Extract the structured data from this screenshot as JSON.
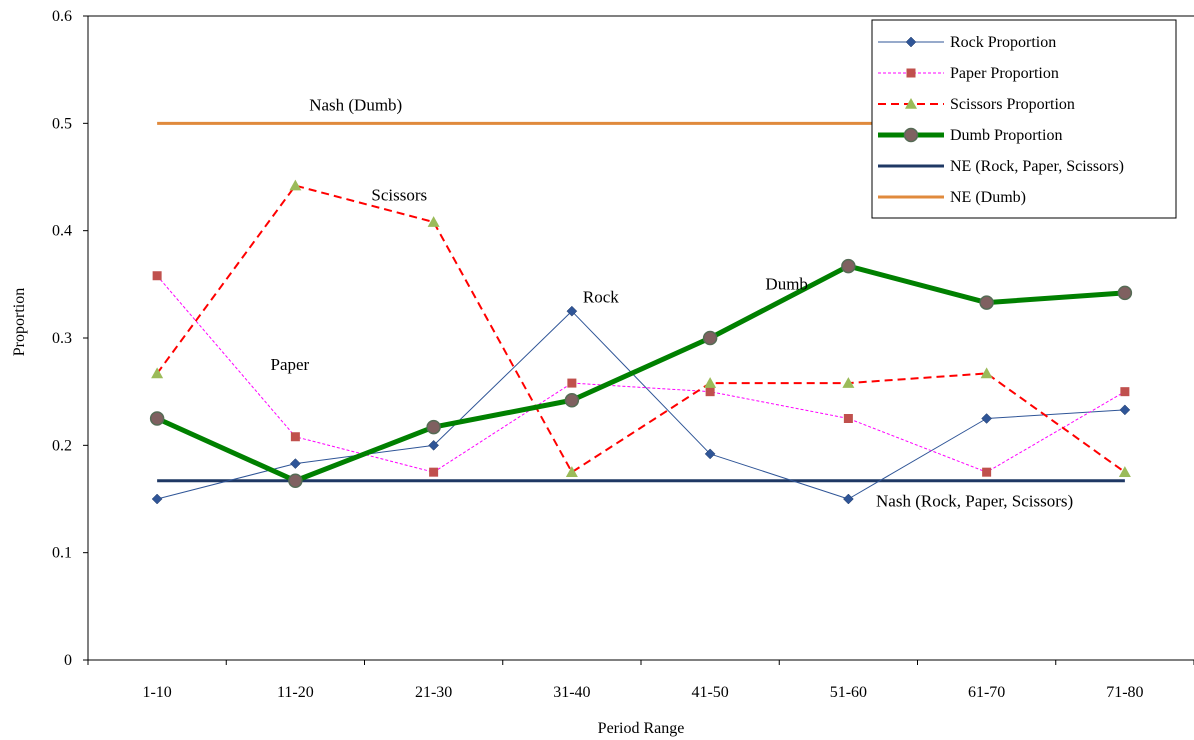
{
  "chart_data": {
    "type": "line",
    "xlabel": "Period Range",
    "ylabel": "Proportion",
    "ylim": [
      0,
      0.6
    ],
    "yticks": [
      "0",
      "0.1",
      "0.2",
      "0.3",
      "0.4",
      "0.5",
      "0.6"
    ],
    "categories": [
      "1-10",
      "11-20",
      "21-30",
      "31-40",
      "41-50",
      "51-60",
      "61-70",
      "71-80"
    ],
    "grid": false,
    "legend_position": "top-right",
    "series": [
      {
        "name": "Rock Proportion",
        "color": "#2f5597",
        "marker": "diamond",
        "dash": "solid",
        "width": 1,
        "values": [
          0.15,
          0.183,
          0.2,
          0.325,
          0.192,
          0.15,
          0.225,
          0.233
        ]
      },
      {
        "name": "Paper Proportion",
        "color": "#ff00ff",
        "markerColor": "#c0504d",
        "marker": "square",
        "dash": "short",
        "width": 1,
        "values": [
          0.358,
          0.208,
          0.175,
          0.258,
          0.25,
          0.225,
          0.175,
          0.25
        ]
      },
      {
        "name": "Scissors Proportion",
        "color": "#ff0000",
        "markerColor": "#9bbb59",
        "marker": "triangle",
        "dash": "long",
        "width": 2,
        "values": [
          0.267,
          0.442,
          0.408,
          0.175,
          0.258,
          0.258,
          0.267,
          0.175
        ]
      },
      {
        "name": "Dumb Proportion",
        "color": "#008000",
        "markerColor": "#7f6060",
        "marker": "circle",
        "dash": "solid",
        "width": 5,
        "values": [
          0.225,
          0.167,
          0.217,
          0.242,
          0.3,
          0.367,
          0.333,
          0.342
        ]
      },
      {
        "name": "NE (Rock, Paper, Scissors)",
        "color": "#1f3864",
        "marker": "none",
        "dash": "solid",
        "width": 3,
        "values": [
          0.167,
          0.167,
          0.167,
          0.167,
          0.167,
          0.167,
          0.167,
          0.167
        ]
      },
      {
        "name": "NE (Dumb)",
        "color": "#e08a3c",
        "marker": "none",
        "dash": "solid",
        "width": 3,
        "values": [
          0.5,
          0.5,
          0.5,
          0.5,
          0.5,
          0.5,
          0.5,
          0.5
        ]
      }
    ],
    "annotations": [
      {
        "text": "Nash (Dumb)",
        "x": 1.1,
        "y": 0.512
      },
      {
        "text": "Scissors",
        "x": 1.55,
        "y": 0.428
      },
      {
        "text": "Rock",
        "x": 3.08,
        "y": 0.333
      },
      {
        "text": "Dumb",
        "x": 4.4,
        "y": 0.345
      },
      {
        "text": "Paper",
        "x": 0.82,
        "y": 0.27
      },
      {
        "text": "Nash (Rock, Paper, Scissors)",
        "x": 5.2,
        "y": 0.143
      }
    ]
  }
}
